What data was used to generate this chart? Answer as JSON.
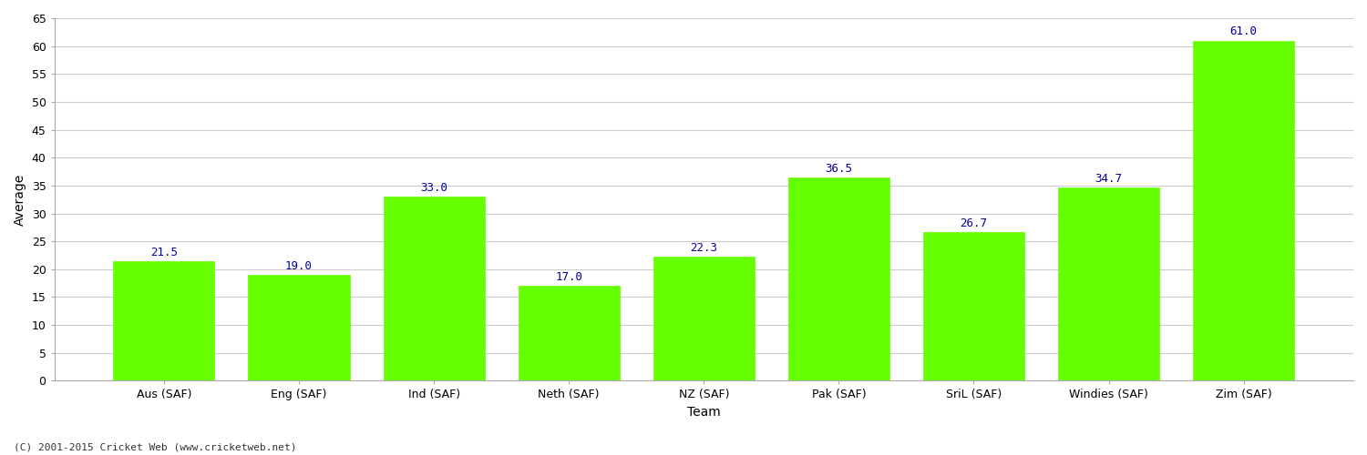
{
  "categories": [
    "Aus (SAF)",
    "Eng (SAF)",
    "Ind (SAF)",
    "Neth (SAF)",
    "NZ (SAF)",
    "Pak (SAF)",
    "SriL (SAF)",
    "Windies (SAF)",
    "Zim (SAF)"
  ],
  "values": [
    21.5,
    19.0,
    33.0,
    17.0,
    22.3,
    36.5,
    26.7,
    34.7,
    61.0
  ],
  "bar_color": "#66ff00",
  "bar_edge_color": "#66ff00",
  "value_label_color": "#000099",
  "xlabel": "Team",
  "ylabel": "Average",
  "ylim": [
    0,
    65
  ],
  "yticks": [
    0,
    5,
    10,
    15,
    20,
    25,
    30,
    35,
    40,
    45,
    50,
    55,
    60,
    65
  ],
  "grid_color": "#cccccc",
  "background_color": "#ffffff",
  "footer_text": "(C) 2001-2015 Cricket Web (www.cricketweb.net)",
  "value_fontsize": 9,
  "label_fontsize": 9,
  "axis_label_fontsize": 10
}
